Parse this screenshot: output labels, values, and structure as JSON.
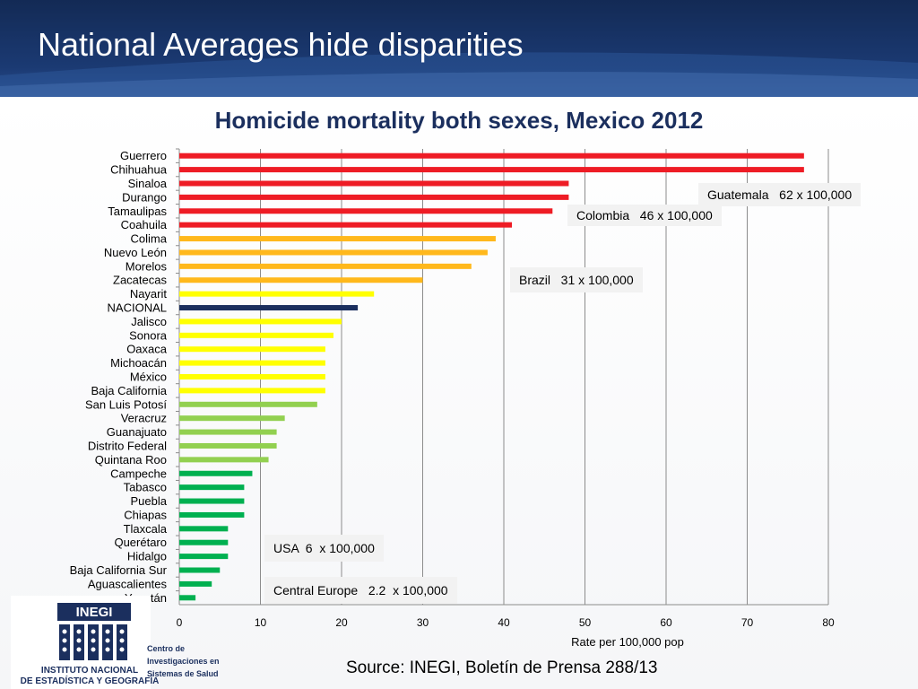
{
  "slide": {
    "title": "National Averages hide disparities",
    "source": "Source:  INEGI, Boletín de Prensa 288/13"
  },
  "logo": {
    "acronym": "INEGI",
    "name": "INSTITUTO NACIONAL\nDE ESTADÍSTICA Y GEOGRAFÍA",
    "partner_text": "Centro de\nInvestigaciones en\nSistemas de Salud"
  },
  "colors": {
    "header": "#1b3a73",
    "title_text": "#1b2f5e",
    "red": "#ee1c25",
    "orange": "#ffb81c",
    "yellow": "#ffff00",
    "national": "#1b2f5e",
    "light_green": "#92d050",
    "green": "#00b050"
  },
  "callouts": {
    "guatemala": "Guatemala   62 x 100,000",
    "colombia": "Colombia   46 x 100,000",
    "brazil": "Brazil   31 x 100,000",
    "usa": "USA  6  x 100,000",
    "europe": "Central Europe   2.2  x 100,000"
  },
  "chart_data": {
    "type": "bar",
    "orientation": "horizontal",
    "title": "Homicide mortality both sexes, Mexico 2012",
    "xlabel": "Rate per 100,000  pop",
    "ylabel": "",
    "xlim": [
      0,
      80
    ],
    "xticks": [
      0,
      10,
      20,
      30,
      40,
      50,
      60,
      70,
      80
    ],
    "grid": "vertical",
    "categories": [
      "Guerrero",
      "Chihuahua",
      "Sinaloa",
      "Durango",
      "Tamaulipas",
      "Coahuila",
      "Colima",
      "Nuevo León",
      "Morelos",
      "Zacatecas",
      "Nayarit",
      "NACIONAL",
      "Jalisco",
      "Sonora",
      "Oaxaca",
      "Michoacán",
      "México",
      "Baja California",
      "San Luis Potosí",
      "Veracruz",
      "Guanajuato",
      "Distrito Federal",
      "Quintana Roo",
      "Campeche",
      "Tabasco",
      "Puebla",
      "Chiapas",
      "Tlaxcala",
      "Querétaro",
      "Hidalgo",
      "Baja California Sur",
      "Aguascalientes",
      "Yucatán"
    ],
    "values": [
      77,
      77,
      48,
      48,
      46,
      41,
      39,
      38,
      36,
      30,
      24,
      22,
      20,
      19,
      18,
      18,
      18,
      18,
      17,
      13,
      12,
      12,
      11,
      9,
      8,
      8,
      8,
      6,
      6,
      6,
      5,
      4,
      2
    ],
    "bar_colors": [
      "red",
      "red",
      "red",
      "red",
      "red",
      "red",
      "orange",
      "orange",
      "orange",
      "orange",
      "yellow",
      "national",
      "yellow",
      "yellow",
      "yellow",
      "yellow",
      "yellow",
      "yellow",
      "light_green",
      "light_green",
      "light_green",
      "light_green",
      "light_green",
      "green",
      "green",
      "green",
      "green",
      "green",
      "green",
      "green",
      "green",
      "green",
      "green"
    ]
  }
}
